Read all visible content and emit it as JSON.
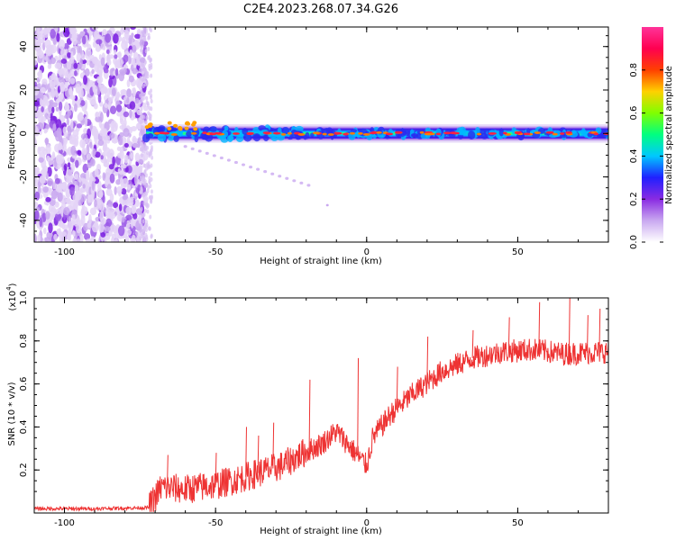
{
  "title": "C2E4.2023.268.07.34.G26",
  "chart_data": [
    {
      "type": "heatmap",
      "name": "spectrogram",
      "xlabel": "Height of straight line (km)",
      "ylabel": "Frequency (Hz)",
      "xlim": [
        -110,
        80
      ],
      "ylim": [
        -50,
        49
      ],
      "xticks": [
        -100,
        -50,
        0,
        50
      ],
      "yticks": [
        -40,
        -20,
        0,
        20,
        40
      ],
      "xtick_labels": [
        "-100",
        "-50",
        "0",
        "50"
      ],
      "ytick_labels": [
        "-40",
        "-20",
        "0",
        "20",
        "40"
      ],
      "noise_region_x": [
        -110,
        -73
      ],
      "signal_band_hz": [
        -3,
        3
      ],
      "signal_start_x": -73,
      "colorbar": {
        "label": "Normalized spectral amplitude",
        "range": [
          0.0,
          1.0
        ],
        "ticks": [
          0.0,
          0.2,
          0.4,
          0.6,
          0.8
        ],
        "tick_labels": [
          "0.0",
          "0.2",
          "0.4",
          "0.6",
          "0.8"
        ],
        "colors": [
          "#ffffff",
          "#c9a8f0",
          "#8a2be2",
          "#2020ff",
          "#00c8ff",
          "#00ff80",
          "#80ff00",
          "#ffd000",
          "#ff4000",
          "#ff0050",
          "#ff3399"
        ]
      }
    },
    {
      "type": "line",
      "name": "snr",
      "xlabel": "Height of straight line (km)",
      "ylabel": "SNR (10 * v/v)",
      "scale_label": "(x10",
      "scale_exp": "4",
      "scale_close": ")",
      "xlim": [
        -110,
        80
      ],
      "ylim": [
        0,
        1.0
      ],
      "xticks": [
        -100,
        -50,
        0,
        50
      ],
      "yticks": [
        0.2,
        0.4,
        0.6,
        0.8,
        1.0
      ],
      "xtick_labels": [
        "-100",
        "-50",
        "0",
        "50"
      ],
      "ytick_labels": [
        "0.2",
        "0.4",
        "0.6",
        "0.8",
        "1.0"
      ],
      "color": "#ee3333",
      "trend_points": [
        [
          -110,
          0.02
        ],
        [
          -90,
          0.02
        ],
        [
          -72,
          0.025
        ],
        [
          -68,
          0.12
        ],
        [
          -60,
          0.11
        ],
        [
          -50,
          0.13
        ],
        [
          -42,
          0.16
        ],
        [
          -35,
          0.19
        ],
        [
          -28,
          0.22
        ],
        [
          -22,
          0.27
        ],
        [
          -15,
          0.32
        ],
        [
          -10,
          0.38
        ],
        [
          -5,
          0.3
        ],
        [
          0,
          0.22
        ],
        [
          2,
          0.35
        ],
        [
          8,
          0.46
        ],
        [
          15,
          0.55
        ],
        [
          25,
          0.66
        ],
        [
          35,
          0.72
        ],
        [
          45,
          0.75
        ],
        [
          55,
          0.76
        ],
        [
          65,
          0.74
        ],
        [
          80,
          0.75
        ]
      ],
      "spikes": [
        [
          -66,
          0.27
        ],
        [
          -50,
          0.28
        ],
        [
          -40,
          0.4
        ],
        [
          -36,
          0.36
        ],
        [
          -31,
          0.42
        ],
        [
          -19,
          0.62
        ],
        [
          -3,
          0.72
        ],
        [
          10,
          0.68
        ],
        [
          20,
          0.82
        ],
        [
          35,
          0.85
        ],
        [
          47,
          0.91
        ],
        [
          57,
          0.98
        ],
        [
          67,
          1.0
        ],
        [
          73,
          0.92
        ],
        [
          77,
          0.95
        ]
      ]
    }
  ]
}
